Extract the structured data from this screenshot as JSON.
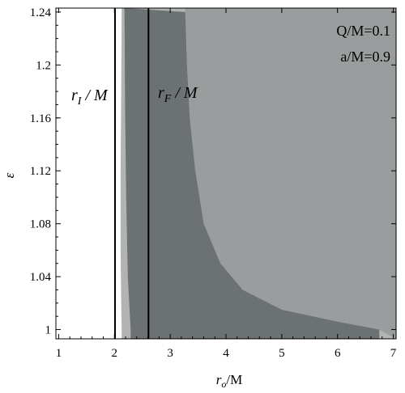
{
  "chart_data": {
    "type": "area",
    "title": "",
    "xlabel": {
      "main": "r",
      "sub": "o",
      "tail": "/M"
    },
    "ylabel": "ε",
    "xlim": [
      0.95,
      7.05
    ],
    "ylim": [
      0.993,
      1.243
    ],
    "x_ticks": [
      1,
      2,
      3,
      4,
      5,
      6,
      7
    ],
    "y_ticks": [
      1,
      1.04,
      1.08,
      1.12,
      1.16,
      1.2,
      1.24
    ],
    "y_tick_labels": [
      "1",
      "1.04",
      "1.08",
      "1.12",
      "1.16",
      "1.2",
      "1.24"
    ],
    "grid": false,
    "parameters": [
      "Q/M=0.1",
      "a/M=0.9"
    ],
    "regions": [
      {
        "color": "#b2b4b4",
        "left_boundary": [
          [
            2.13,
            1.0
          ],
          [
            2.12,
            1.02
          ],
          [
            2.11,
            1.06
          ],
          [
            2.11,
            1.12
          ],
          [
            2.12,
            1.18
          ],
          [
            2.13,
            1.24
          ]
        ]
      },
      {
        "color": "#6c7173",
        "left_boundary": [
          [
            2.29,
            1.0
          ],
          [
            2.24,
            1.04
          ],
          [
            2.21,
            1.1
          ],
          [
            2.19,
            1.17
          ],
          [
            2.18,
            1.24
          ]
        ],
        "right_boundary": [
          [
            3.27,
            1.24
          ],
          [
            3.3,
            1.2
          ],
          [
            3.35,
            1.16
          ],
          [
            3.45,
            1.12
          ],
          [
            3.6,
            1.08
          ],
          [
            3.9,
            1.05
          ],
          [
            4.3,
            1.03
          ],
          [
            5.0,
            1.015
          ],
          [
            6.0,
            1.006
          ],
          [
            6.75,
            1.0
          ]
        ]
      },
      {
        "color": "#9a9d9d",
        "note": "fills rest of plot to the right"
      }
    ],
    "vertical_lines": [
      {
        "name": "r_I/M",
        "label_main": "r",
        "label_sub": "I",
        "label_tail": " / M",
        "x": 2.01
      },
      {
        "name": "r_F/M",
        "label_main": "r",
        "label_sub": "F",
        "label_tail": " / M",
        "x": 2.61
      }
    ]
  }
}
